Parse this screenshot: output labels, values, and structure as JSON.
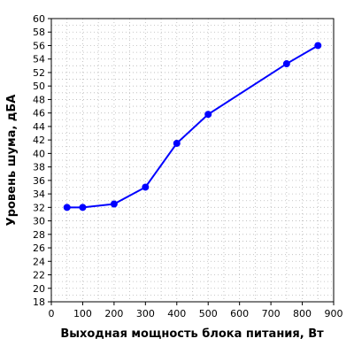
{
  "chart_data": {
    "type": "line",
    "title": "",
    "xlabel": "Выходная мощность блока питания, Вт",
    "ylabel": "Уровень шума, дБА",
    "xlim": [
      0,
      900
    ],
    "ylim": [
      18,
      60
    ],
    "x_ticks": [
      0,
      100,
      200,
      300,
      400,
      500,
      600,
      700,
      800,
      900
    ],
    "y_ticks": [
      18,
      20,
      22,
      24,
      26,
      28,
      30,
      32,
      34,
      36,
      38,
      40,
      42,
      44,
      46,
      48,
      50,
      52,
      54,
      56,
      58,
      60
    ],
    "grid": true,
    "series": [
      {
        "color": "#0000ff",
        "x": [
          50,
          100,
          200,
          300,
          400,
          500,
          750,
          850
        ],
        "y": [
          32.0,
          32.0,
          32.5,
          35.0,
          41.5,
          45.8,
          53.3,
          56.0
        ]
      }
    ]
  }
}
